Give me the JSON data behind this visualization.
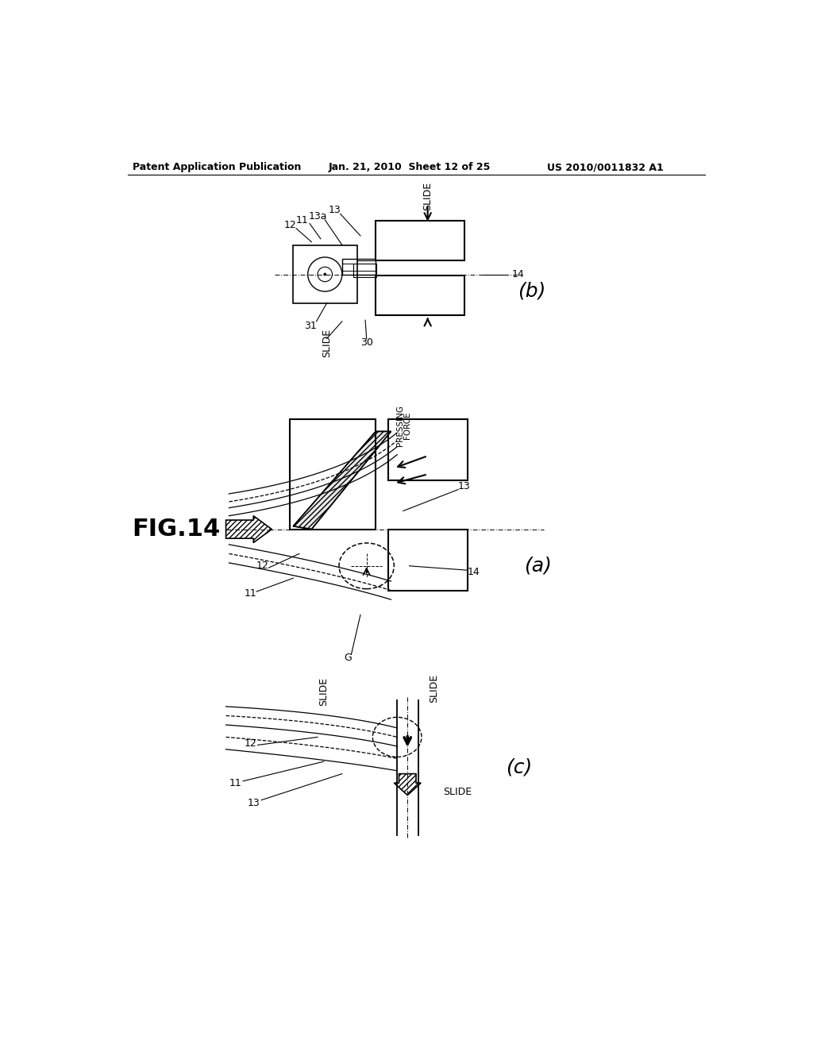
{
  "header_left": "Patent Application Publication",
  "header_center": "Jan. 21, 2010  Sheet 12 of 25",
  "header_right": "US 2010/0011832 A1",
  "bg_color": "#ffffff"
}
